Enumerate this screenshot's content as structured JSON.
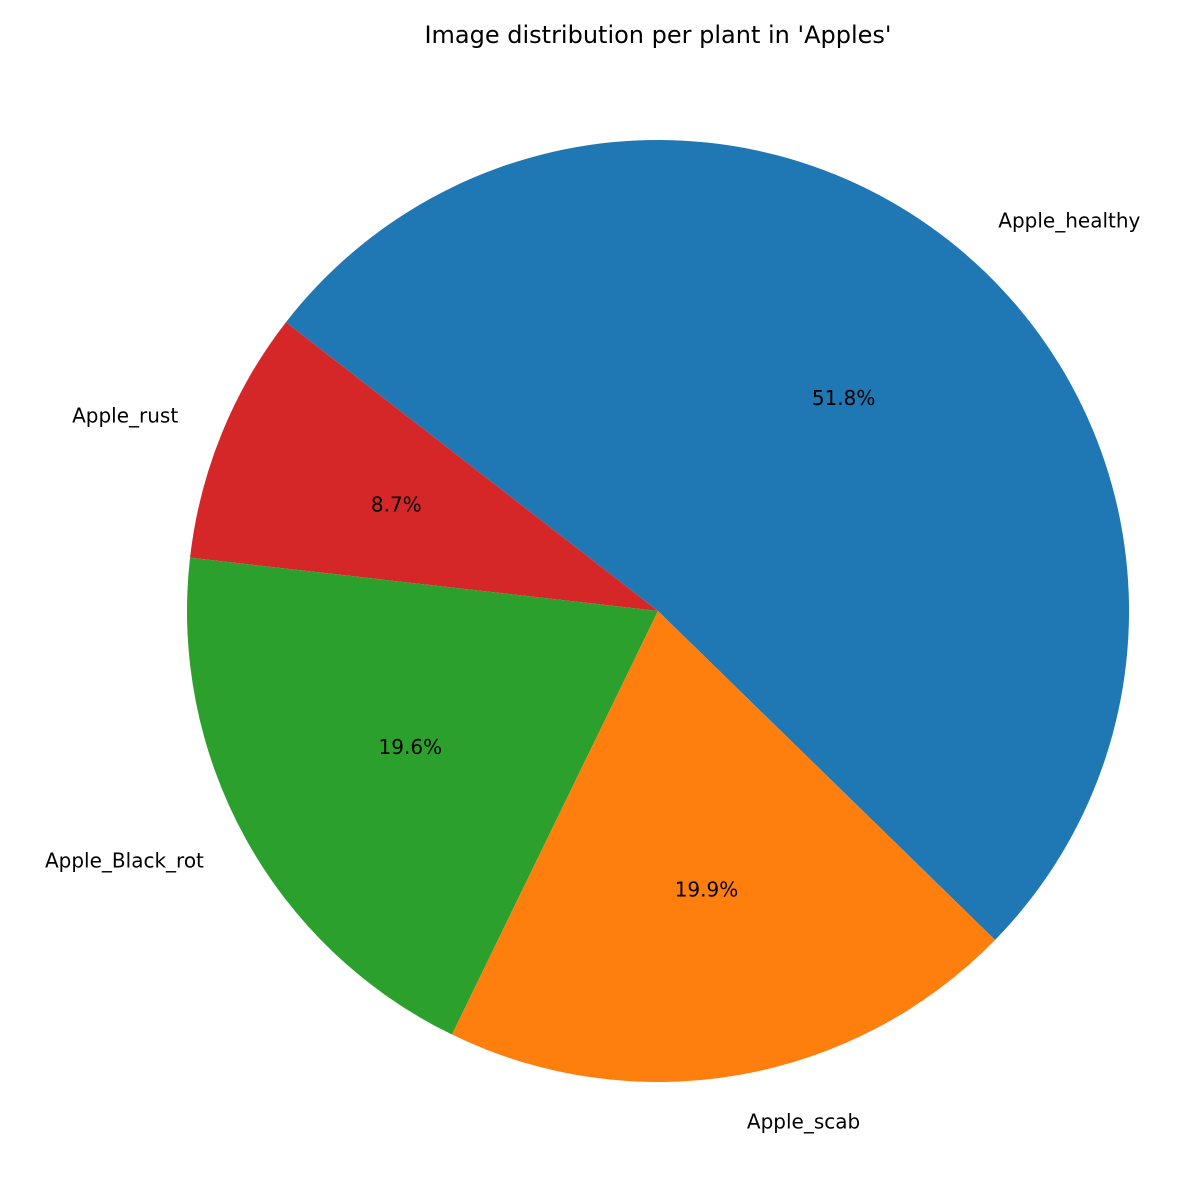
{
  "chart_data": {
    "type": "pie",
    "title": "Image distribution per plant in 'Apples'",
    "slices": [
      {
        "label": "Apple_healthy",
        "percent": 51.8,
        "pct_label": "51.8%",
        "color": "#1f77b4"
      },
      {
        "label": "Apple_rust",
        "percent": 8.7,
        "pct_label": "8.7%",
        "color": "#d62728"
      },
      {
        "label": "Apple_Black_rot",
        "percent": 19.6,
        "pct_label": "19.6%",
        "color": "#2ca02c"
      },
      {
        "label": "Apple_scab",
        "percent": 19.9,
        "pct_label": "19.9%",
        "color": "#ff7f0e"
      }
    ],
    "direction": "counterclockwise",
    "legend": "none"
  }
}
